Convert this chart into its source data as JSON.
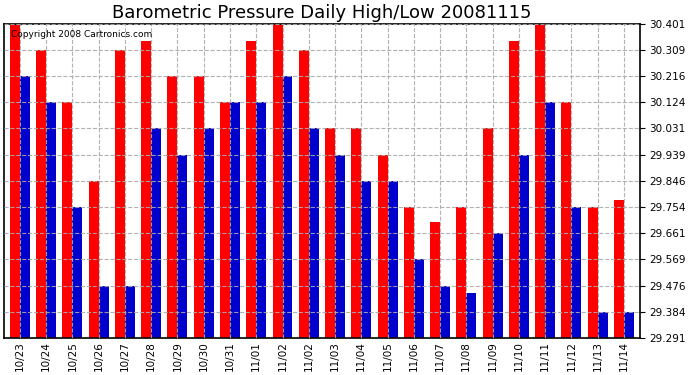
{
  "title": "Barometric Pressure Daily High/Low 20081115",
  "copyright": "Copyright 2008 Cartronics.com",
  "labels": [
    "10/23",
    "10/24",
    "10/25",
    "10/26",
    "10/27",
    "10/28",
    "10/29",
    "10/30",
    "10/31",
    "11/01",
    "11/02",
    "11/02",
    "11/03",
    "11/04",
    "11/05",
    "11/06",
    "11/07",
    "11/08",
    "11/09",
    "11/10",
    "11/11",
    "11/12",
    "11/13",
    "11/14"
  ],
  "highs": [
    30.401,
    30.309,
    30.124,
    29.846,
    30.309,
    30.34,
    30.216,
    30.216,
    30.124,
    30.34,
    30.401,
    30.309,
    30.031,
    30.031,
    29.939,
    29.754,
    29.7,
    29.754,
    30.031,
    30.34,
    30.401,
    30.124,
    29.754,
    29.78
  ],
  "lows": [
    30.216,
    30.124,
    29.754,
    29.476,
    29.476,
    30.031,
    29.939,
    30.031,
    30.124,
    30.124,
    30.216,
    30.031,
    29.939,
    29.846,
    29.846,
    29.569,
    29.476,
    29.45,
    29.661,
    29.939,
    30.124,
    29.754,
    29.384,
    29.384
  ],
  "high_color": "#ff0000",
  "low_color": "#0000cc",
  "background_color": "#ffffff",
  "grid_color": "#aaaaaa",
  "yticks": [
    29.291,
    29.384,
    29.476,
    29.569,
    29.661,
    29.754,
    29.846,
    29.939,
    30.031,
    30.124,
    30.216,
    30.309,
    30.401
  ],
  "ymin": 29.291,
  "ymax": 30.401,
  "title_fontsize": 13,
  "tick_fontsize": 7.5
}
